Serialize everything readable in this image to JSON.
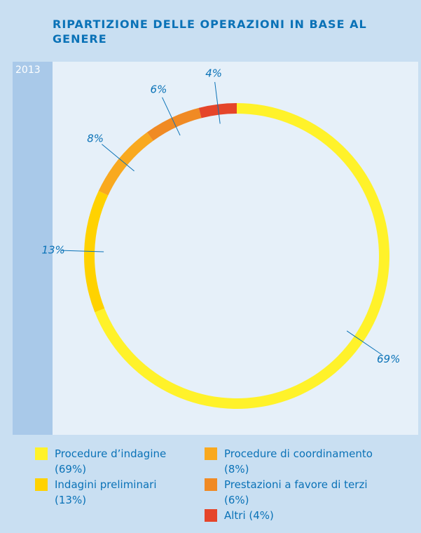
{
  "chart_data": {
    "type": "donut",
    "title": "RIPARTIZIONE DELLE OPERAZIONI IN BASE AL GENERE",
    "subtitle": "2013",
    "categories": [
      "Procedure d’indagine (69%)",
      "Indagini preliminari (13%)",
      "Procedure di coordinamento (8%)",
      "Prestazioni a favore di terzi (6%)",
      "Altri (4%)"
    ],
    "values": [
      69,
      13,
      8,
      6,
      4
    ],
    "value_labels": [
      "69%",
      "13%",
      "8%",
      "6%",
      "4%"
    ],
    "colors": [
      "#fff22a",
      "#ffd200",
      "#f9a91f",
      "#f08a24",
      "#e5452a"
    ]
  }
}
